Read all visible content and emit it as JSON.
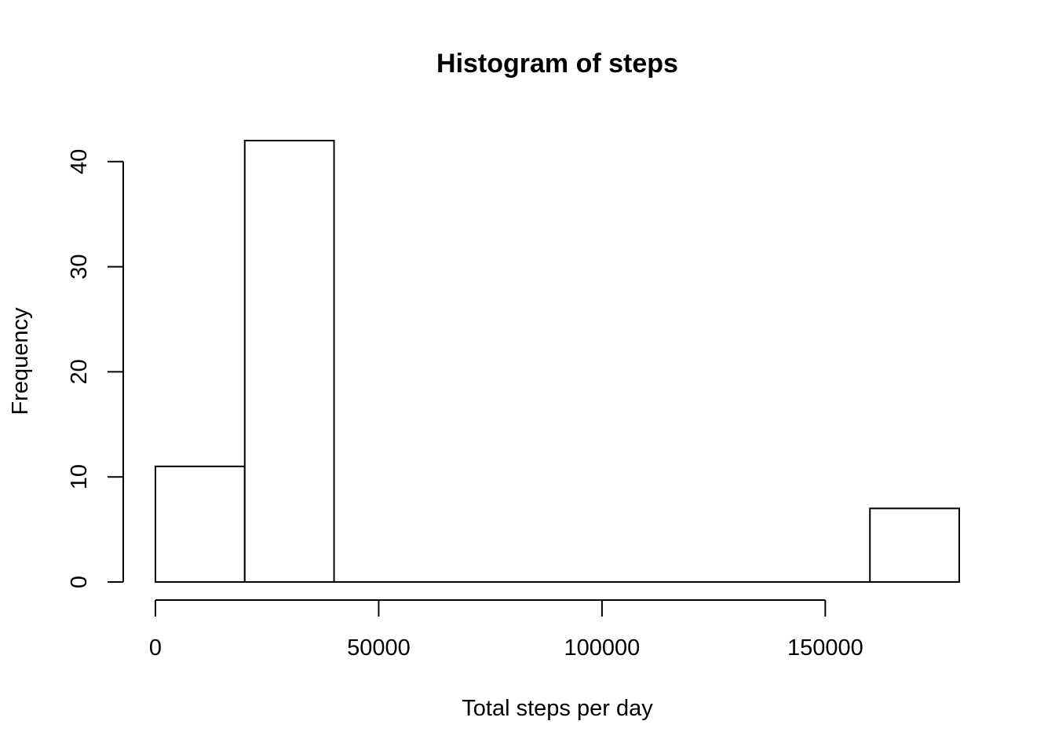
{
  "chart_data": {
    "type": "bar",
    "title": "Histogram of steps",
    "xlabel": "Total steps per day",
    "ylabel": "Frequency",
    "bins": [
      {
        "start": 0,
        "end": 20000,
        "count": 11
      },
      {
        "start": 20000,
        "end": 40000,
        "count": 42
      },
      {
        "start": 40000,
        "end": 60000,
        "count": 0
      },
      {
        "start": 60000,
        "end": 80000,
        "count": 0
      },
      {
        "start": 80000,
        "end": 100000,
        "count": 0
      },
      {
        "start": 100000,
        "end": 120000,
        "count": 0
      },
      {
        "start": 120000,
        "end": 140000,
        "count": 0
      },
      {
        "start": 140000,
        "end": 160000,
        "count": 0
      },
      {
        "start": 160000,
        "end": 180000,
        "count": 7
      }
    ],
    "x_ticks": [
      0,
      50000,
      100000,
      150000
    ],
    "x_tick_labels": [
      "0",
      "50000",
      "100000",
      "150000"
    ],
    "y_ticks": [
      0,
      10,
      20,
      30,
      40
    ],
    "y_tick_labels": [
      "0",
      "10",
      "20",
      "30",
      "40"
    ],
    "xlim": [
      0,
      180000
    ],
    "ylim": [
      0,
      42
    ],
    "grid": false,
    "bar_fill": "#ffffff",
    "bar_stroke": "#000000"
  }
}
